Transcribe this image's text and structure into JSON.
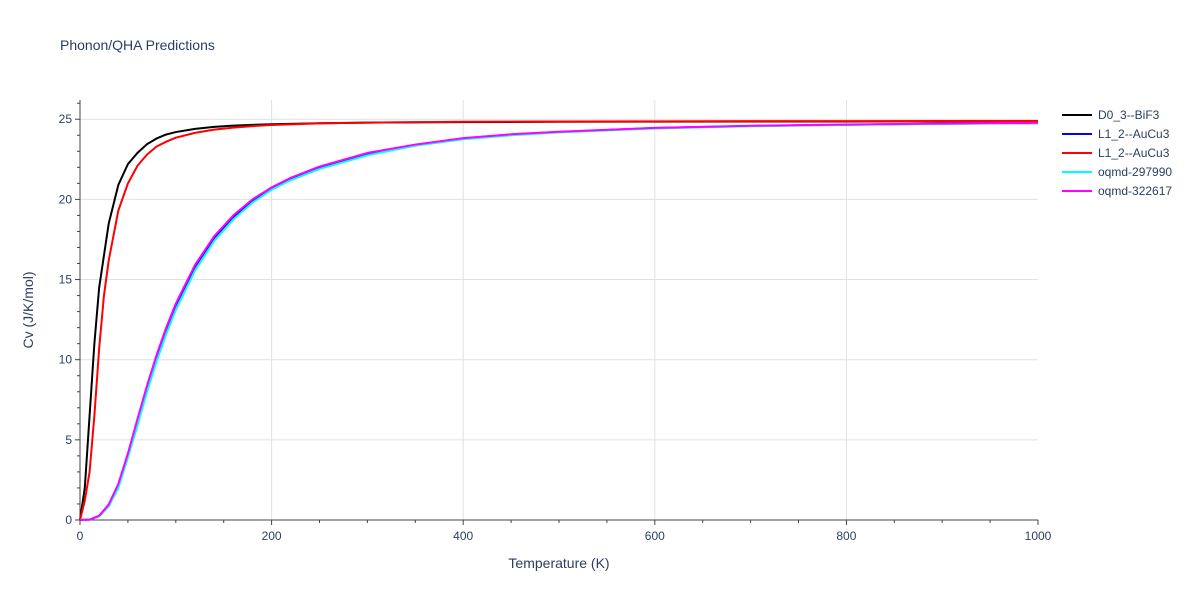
{
  "chart_data": {
    "type": "line",
    "title": "Phonon/QHA Predictions",
    "xlabel": "Temperature (K)",
    "ylabel": "Cv (J/K/mol)",
    "xlim": [
      0,
      1000
    ],
    "ylim": [
      0,
      26.2
    ],
    "xticks": [
      0,
      200,
      400,
      600,
      800,
      1000
    ],
    "yticks": [
      0,
      5,
      10,
      15,
      20,
      25
    ],
    "grid": true,
    "legend_position": "top-right",
    "series": [
      {
        "name": "D0_3--BiF3",
        "color": "#000000",
        "x": [
          0,
          5,
          10,
          15,
          20,
          25,
          30,
          40,
          50,
          60,
          70,
          80,
          90,
          100,
          120,
          140,
          160,
          180,
          200,
          250,
          300,
          400,
          500,
          600,
          700,
          800,
          900,
          1000
        ],
        "y": [
          0,
          2.0,
          6.5,
          11.0,
          14.5,
          16.5,
          18.5,
          20.9,
          22.2,
          22.9,
          23.45,
          23.8,
          24.05,
          24.2,
          24.4,
          24.52,
          24.6,
          24.65,
          24.69,
          24.75,
          24.79,
          24.82,
          24.84,
          24.85,
          24.86,
          24.86,
          24.87,
          24.87
        ]
      },
      {
        "name": "L1_2--AuCu3",
        "color": "#0000ff",
        "x": [
          0,
          10,
          20,
          30,
          40,
          50,
          60,
          70,
          80,
          90,
          100,
          120,
          140,
          160,
          180,
          200,
          220,
          250,
          300,
          350,
          400,
          450,
          500,
          600,
          700,
          800,
          900,
          1000
        ],
        "y": [
          0,
          0.02,
          0.25,
          0.95,
          2.2,
          4.1,
          6.2,
          8.3,
          10.2,
          11.9,
          13.4,
          15.8,
          17.6,
          18.9,
          19.9,
          20.7,
          21.3,
          22.0,
          22.85,
          23.4,
          23.8,
          24.05,
          24.2,
          24.45,
          24.58,
          24.66,
          24.72,
          24.76
        ]
      },
      {
        "name": "L1_2--AuCu3",
        "color": "#ff0000",
        "x": [
          0,
          5,
          10,
          15,
          20,
          25,
          30,
          40,
          50,
          60,
          70,
          80,
          90,
          100,
          120,
          140,
          160,
          180,
          200,
          250,
          300,
          400,
          500,
          600,
          700,
          800,
          900,
          1000
        ],
        "y": [
          0,
          1.2,
          3.0,
          6.5,
          10.7,
          14.0,
          16.2,
          19.3,
          21.0,
          22.1,
          22.8,
          23.3,
          23.6,
          23.85,
          24.15,
          24.35,
          24.48,
          24.57,
          24.64,
          24.74,
          24.79,
          24.84,
          24.86,
          24.87,
          24.88,
          24.88,
          24.89,
          24.89
        ]
      },
      {
        "name": "oqmd-297990",
        "color": "#00ffff",
        "x": [
          0,
          10,
          20,
          30,
          40,
          50,
          60,
          70,
          80,
          90,
          100,
          120,
          140,
          160,
          180,
          200,
          220,
          250,
          300,
          350,
          400,
          450,
          500,
          600,
          700,
          800,
          900,
          1000
        ],
        "y": [
          0,
          0.02,
          0.22,
          0.85,
          2.0,
          3.9,
          5.9,
          8.0,
          9.9,
          11.6,
          13.1,
          15.55,
          17.4,
          18.75,
          19.8,
          20.6,
          21.2,
          21.9,
          22.75,
          23.35,
          23.75,
          24.0,
          24.18,
          24.42,
          24.56,
          24.65,
          24.71,
          24.75
        ]
      },
      {
        "name": "oqmd-322617",
        "color": "#ff00ff",
        "x": [
          0,
          10,
          20,
          30,
          40,
          50,
          60,
          70,
          80,
          90,
          100,
          120,
          140,
          160,
          180,
          200,
          220,
          250,
          300,
          350,
          400,
          450,
          500,
          600,
          700,
          800,
          900,
          1000
        ],
        "y": [
          0,
          0.02,
          0.26,
          0.97,
          2.25,
          4.15,
          6.3,
          8.4,
          10.3,
          12.0,
          13.5,
          15.9,
          17.7,
          19.0,
          20.0,
          20.75,
          21.35,
          22.05,
          22.9,
          23.42,
          23.82,
          24.06,
          24.22,
          24.46,
          24.59,
          24.67,
          24.73,
          24.77
        ]
      }
    ]
  }
}
